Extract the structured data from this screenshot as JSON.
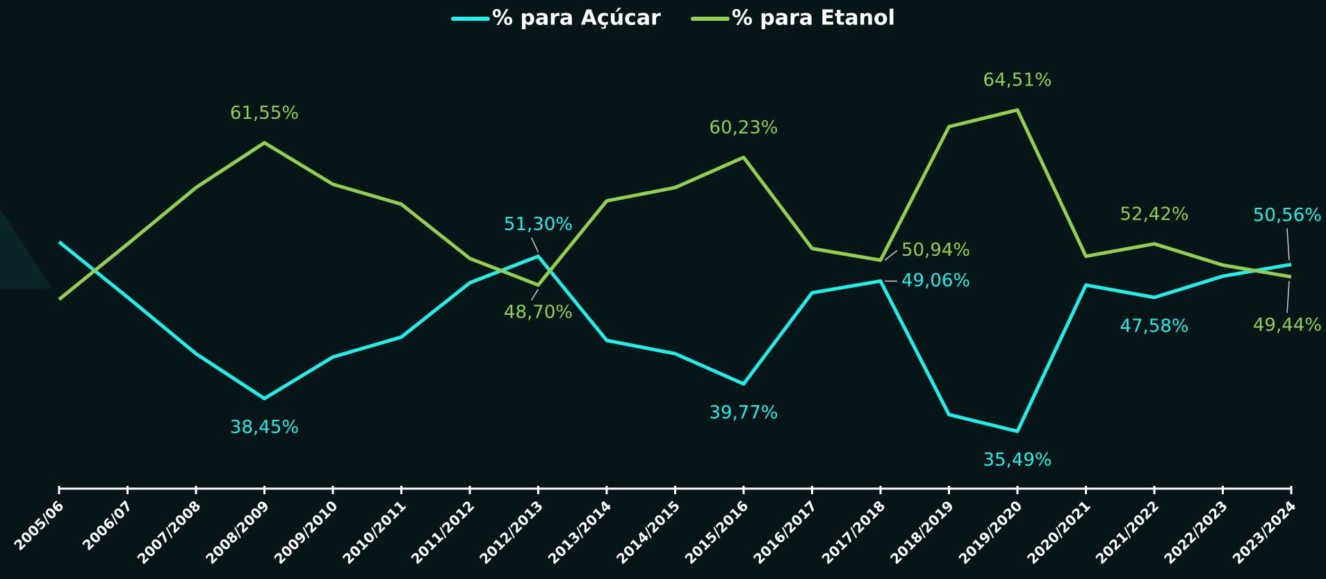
{
  "chart_data": {
    "type": "line",
    "categories": [
      "2005/06",
      "2006/07",
      "2007/2008",
      "2008/2009",
      "2009/2010",
      "2010/2011",
      "2011/2012",
      "2012/2013",
      "2013/2014",
      "2014/2015",
      "2015/2016",
      "2016/2017",
      "2017/2018",
      "2018/2019",
      "2019/2020",
      "2020/2021",
      "2021/2022",
      "2022/2023",
      "2023/2024"
    ],
    "series": [
      {
        "name": "% para Açúcar",
        "color": "#1ef0ea",
        "values": [
          52.6,
          47.6,
          42.5,
          38.45,
          42.2,
          44.0,
          48.9,
          51.3,
          43.7,
          42.5,
          39.77,
          48.0,
          49.06,
          37.0,
          35.49,
          48.7,
          47.58,
          49.5,
          50.56
        ],
        "value_labels": [
          null,
          null,
          null,
          "38,45%",
          null,
          null,
          null,
          "51,30%",
          null,
          null,
          "39,77%",
          null,
          "49,06%",
          null,
          "35,49%",
          null,
          "47,58%",
          null,
          "50,56%"
        ]
      },
      {
        "name": "% para Etanol",
        "color": "#92d050",
        "values": [
          47.4,
          52.4,
          57.5,
          61.55,
          57.8,
          56.0,
          51.1,
          48.7,
          56.3,
          57.5,
          60.23,
          52.0,
          50.94,
          63.0,
          64.51,
          51.3,
          52.42,
          50.5,
          49.44
        ],
        "value_labels": [
          null,
          null,
          null,
          "61,55%",
          null,
          null,
          null,
          "48,70%",
          null,
          null,
          "60,23%",
          null,
          "50,94%",
          null,
          "64,51%",
          null,
          "52,42%",
          null,
          "49,44%"
        ]
      }
    ],
    "ylim": [
      30,
      74
    ],
    "legend": "top"
  }
}
